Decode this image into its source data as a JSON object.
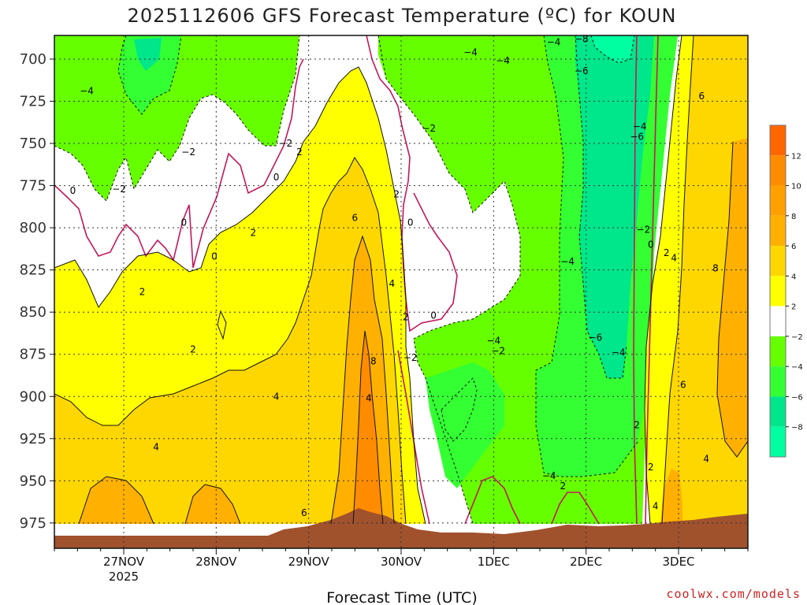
{
  "chart_data": {
    "type": "heatmap",
    "title": "2025112606 GFS Forecast Temperature (ºC) for KOUN",
    "xlabel": "Forecast Time (UTC)",
    "ylabel": "",
    "x_ticks": [
      {
        "label": "27NOV",
        "sub": "2025",
        "day": 27.0
      },
      {
        "label": "28NOV",
        "sub": "",
        "day": 28.0
      },
      {
        "label": "29NOV",
        "sub": "",
        "day": 29.0
      },
      {
        "label": "30NOV",
        "sub": "",
        "day": 30.0
      },
      {
        "label": "1DEC",
        "sub": "",
        "day": 31.0
      },
      {
        "label": "2DEC",
        "sub": "",
        "day": 32.0
      },
      {
        "label": "3DEC",
        "sub": "",
        "day": 33.0
      }
    ],
    "y_ticks": [
      "700",
      "725",
      "750",
      "775",
      "800",
      "825",
      "850",
      "875",
      "900",
      "925",
      "950",
      "975"
    ],
    "y_levels": [
      700,
      725,
      750,
      775,
      800,
      825,
      850,
      875,
      900,
      925,
      950,
      975
    ],
    "x_range_days": [
      26.25,
      33.75
    ],
    "y_range_hpa": [
      686,
      990
    ],
    "colorbar": {
      "levels": [
        -10,
        -8,
        -6,
        -4,
        -2,
        2,
        4,
        6,
        8,
        10,
        12,
        14
      ],
      "tick_labels": [
        "12",
        "10",
        "8",
        "6",
        "4",
        "2",
        "−2",
        "−4",
        "−6",
        "−8"
      ],
      "colors": [
        "#00ffa0",
        "#00e68a",
        "#33ff33",
        "#66ff00",
        "#ffffff",
        "#ffff00",
        "#ffd700",
        "#ffb000",
        "#ffa000",
        "#ff8c00",
        "#ff6600"
      ]
    },
    "surface_color": "#a0522d",
    "contour_labels": [
      {
        "text": "−4",
        "day": 26.6,
        "hpa": 719
      },
      {
        "text": "−2",
        "day": 26.95,
        "hpa": 777
      },
      {
        "text": "0",
        "day": 26.45,
        "hpa": 778
      },
      {
        "text": "−2",
        "day": 27.7,
        "hpa": 755
      },
      {
        "text": "0",
        "day": 27.65,
        "hpa": 797
      },
      {
        "text": "0",
        "day": 27.98,
        "hpa": 817
      },
      {
        "text": "−2",
        "day": 28.75,
        "hpa": 750
      },
      {
        "text": "0",
        "day": 28.65,
        "hpa": 770
      },
      {
        "text": "2",
        "day": 28.9,
        "hpa": 755
      },
      {
        "text": "2",
        "day": 28.4,
        "hpa": 803
      },
      {
        "text": "2",
        "day": 27.2,
        "hpa": 838
      },
      {
        "text": "2",
        "day": 27.75,
        "hpa": 872
      },
      {
        "text": "4",
        "day": 28.65,
        "hpa": 900
      },
      {
        "text": "4",
        "day": 27.35,
        "hpa": 930
      },
      {
        "text": "6",
        "day": 29.5,
        "hpa": 794
      },
      {
        "text": "8",
        "day": 29.7,
        "hpa": 879
      },
      {
        "text": "4",
        "day": 29.65,
        "hpa": 901
      },
      {
        "text": "6",
        "day": 28.95,
        "hpa": 969
      },
      {
        "text": "2",
        "day": 29.95,
        "hpa": 780
      },
      {
        "text": "0",
        "day": 30.1,
        "hpa": 797
      },
      {
        "text": "4",
        "day": 29.9,
        "hpa": 833
      },
      {
        "text": "2",
        "day": 30.05,
        "hpa": 853
      },
      {
        "text": "0",
        "day": 30.35,
        "hpa": 852
      },
      {
        "text": "−2",
        "day": 30.1,
        "hpa": 877
      },
      {
        "text": "−2",
        "day": 30.3,
        "hpa": 741
      },
      {
        "text": "−4",
        "day": 30.75,
        "hpa": 696
      },
      {
        "text": "−4",
        "day": 31.1,
        "hpa": 701
      },
      {
        "text": "−4",
        "day": 31.65,
        "hpa": 690
      },
      {
        "text": "−8",
        "day": 31.95,
        "hpa": 688
      },
      {
        "text": "−6",
        "day": 31.95,
        "hpa": 707
      },
      {
        "text": "−4",
        "day": 31.0,
        "hpa": 867
      },
      {
        "text": "−2",
        "day": 31.05,
        "hpa": 873
      },
      {
        "text": "−4",
        "day": 31.8,
        "hpa": 820
      },
      {
        "text": "−6",
        "day": 32.1,
        "hpa": 865
      },
      {
        "text": "−4",
        "day": 32.35,
        "hpa": 874
      },
      {
        "text": "−4",
        "day": 32.58,
        "hpa": 740
      },
      {
        "text": "−6",
        "day": 32.55,
        "hpa": 746
      },
      {
        "text": "−2",
        "day": 32.62,
        "hpa": 801
      },
      {
        "text": "0",
        "day": 32.7,
        "hpa": 810
      },
      {
        "text": "2",
        "day": 32.87,
        "hpa": 815
      },
      {
        "text": "4",
        "day": 32.95,
        "hpa": 818
      },
      {
        "text": "6",
        "day": 33.25,
        "hpa": 722
      },
      {
        "text": "8",
        "day": 33.4,
        "hpa": 824
      },
      {
        "text": "6",
        "day": 33.05,
        "hpa": 893
      },
      {
        "text": "4",
        "day": 33.3,
        "hpa": 937
      },
      {
        "text": "2",
        "day": 32.55,
        "hpa": 917
      },
      {
        "text": "2",
        "day": 32.7,
        "hpa": 942
      },
      {
        "text": "4",
        "day": 32.75,
        "hpa": 965
      },
      {
        "text": "−4",
        "day": 31.6,
        "hpa": 947
      },
      {
        "text": "2",
        "day": 31.75,
        "hpa": 953
      }
    ]
  },
  "footer": {
    "credit": "coolwx.com/models"
  }
}
